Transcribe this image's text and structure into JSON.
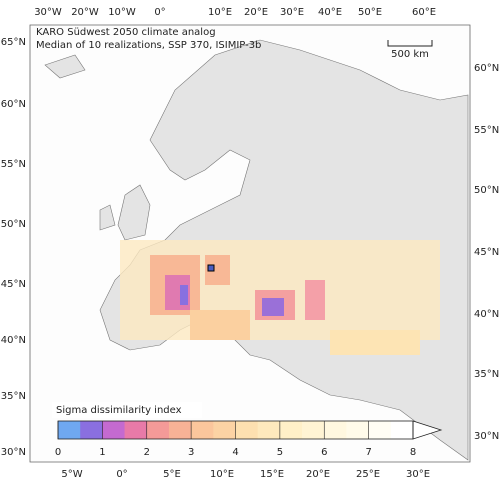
{
  "map": {
    "title": "KARO Südwest 2050 climate analog",
    "subtitle": "Median of 10 realizations, SSP 370, ISIMIP-3b",
    "scale_bar": "500 km",
    "top_labels": [
      "30°W",
      "20°W",
      "10°W",
      "0°",
      "10°E",
      "20°E",
      "30°E",
      "40°E",
      "50°E",
      "60°E"
    ],
    "left_labels": [
      "65°N",
      "60°N",
      "55°N",
      "50°N",
      "45°N",
      "40°N",
      "35°N",
      "30°N"
    ],
    "right_labels": [
      "60°N",
      "55°N",
      "50°N",
      "45°N",
      "40°N",
      "35°N",
      "30°N"
    ],
    "bottom_labels": [
      "5°W",
      "0°",
      "5°E",
      "10°E",
      "15°E",
      "20°E",
      "25°E",
      "30°E"
    ],
    "colorbar": {
      "title": "Sigma dissimilarity index",
      "ticks": [
        0,
        1,
        2,
        3,
        4,
        5,
        6,
        7,
        8
      ],
      "colors": [
        "#6fa8f0",
        "#8a6fe0",
        "#c46ad0",
        "#e87aa8",
        "#f49a98",
        "#f8b296",
        "#fbc69c",
        "#fcd3a4",
        "#fde0b0",
        "#fee9bd",
        "#fff0c8",
        "#fff4d4",
        "#fff8e0",
        "#fffbea",
        "#fffdf4",
        "#ffffff"
      ]
    }
  }
}
